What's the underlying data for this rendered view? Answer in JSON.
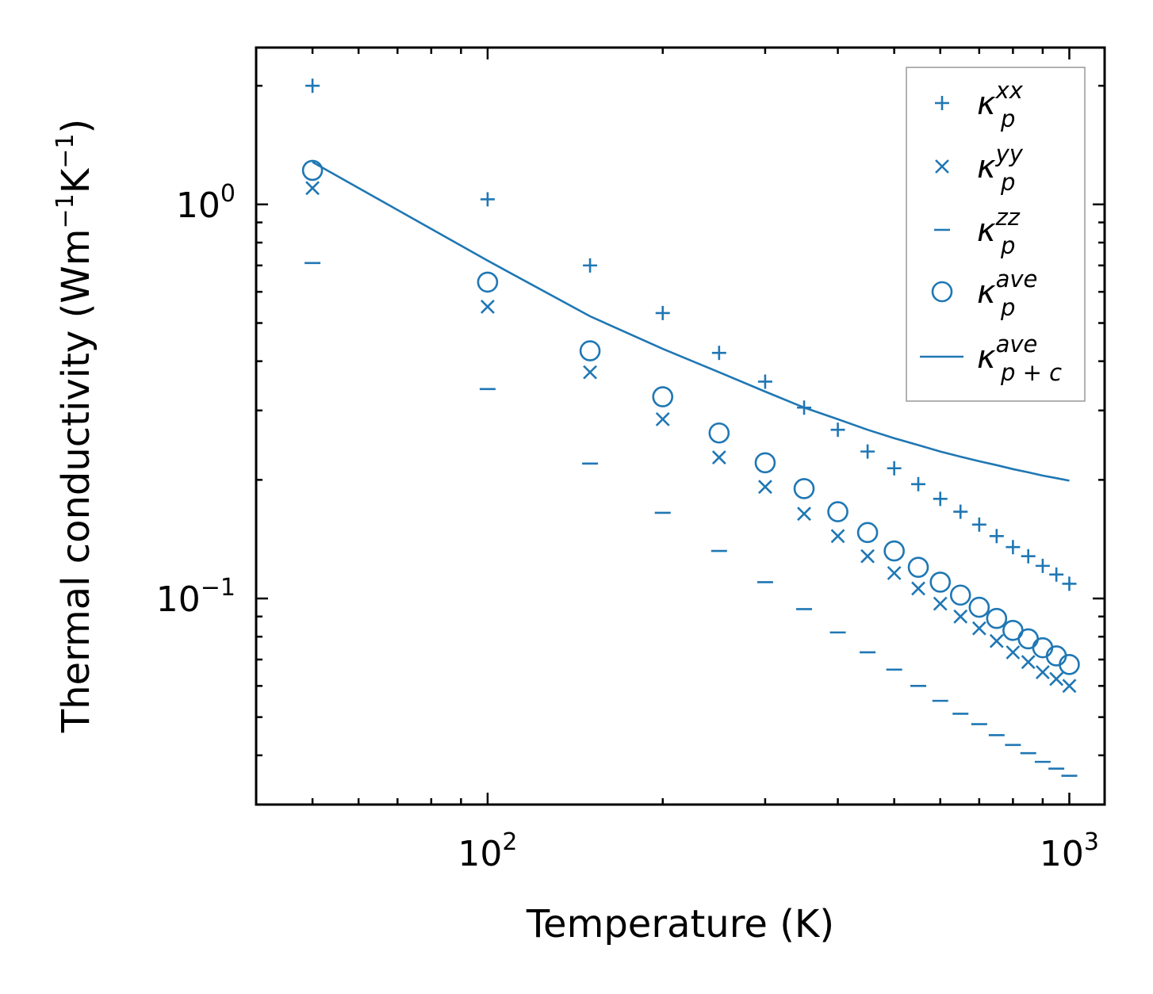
{
  "chart_data": {
    "type": "scatter",
    "xscale": "log",
    "yscale": "log",
    "xlabel": "Temperature (K)",
    "ylabel": {
      "main": "Thermal conductivity (Wm",
      "exp1": "−1",
      "mid": "K",
      "exp2": "−1",
      "close": ")"
    },
    "xlim": [
      40,
      1150
    ],
    "ylim": [
      0.03,
      2.5
    ],
    "x_major_ticks": [
      {
        "value": 100,
        "base": "10",
        "exp": "2"
      },
      {
        "value": 1000,
        "base": "10",
        "exp": "3"
      }
    ],
    "y_major_ticks": [
      {
        "value": 1,
        "base": "10",
        "exp": "0"
      },
      {
        "value": 0.1,
        "base": "10",
        "exp": "−1"
      }
    ],
    "color": "#1f77b4",
    "x": [
      50,
      100,
      150,
      200,
      250,
      300,
      350,
      400,
      450,
      500,
      550,
      600,
      650,
      700,
      750,
      800,
      850,
      900,
      950,
      1000
    ],
    "series": [
      {
        "name": "kappa_p^xx",
        "marker": "plus",
        "values": [
          2.0,
          1.03,
          0.7,
          0.53,
          0.42,
          0.355,
          0.305,
          0.268,
          0.236,
          0.214,
          0.195,
          0.179,
          0.166,
          0.154,
          0.144,
          0.135,
          0.128,
          0.121,
          0.115,
          0.109
        ]
      },
      {
        "name": "kappa_p^yy",
        "marker": "x",
        "values": [
          1.1,
          0.55,
          0.375,
          0.285,
          0.228,
          0.192,
          0.164,
          0.144,
          0.128,
          0.116,
          0.106,
          0.097,
          0.09,
          0.084,
          0.078,
          0.073,
          0.069,
          0.065,
          0.0625,
          0.06
        ]
      },
      {
        "name": "kappa_p^zz",
        "marker": "hline",
        "values": [
          0.71,
          0.34,
          0.22,
          0.165,
          0.132,
          0.11,
          0.094,
          0.082,
          0.073,
          0.066,
          0.06,
          0.055,
          0.051,
          0.048,
          0.045,
          0.0425,
          0.0405,
          0.0385,
          0.037,
          0.0355
        ]
      },
      {
        "name": "kappa_p^ave",
        "marker": "circle",
        "values": [
          1.22,
          0.635,
          0.425,
          0.325,
          0.263,
          0.221,
          0.19,
          0.166,
          0.147,
          0.132,
          0.12,
          0.11,
          0.102,
          0.095,
          0.089,
          0.083,
          0.079,
          0.075,
          0.0715,
          0.068
        ]
      },
      {
        "name": "kappa_p+c^ave",
        "marker": "line",
        "values": [
          1.28,
          0.72,
          0.52,
          0.43,
          0.375,
          0.335,
          0.305,
          0.285,
          0.268,
          0.255,
          0.245,
          0.236,
          0.229,
          0.223,
          0.218,
          0.213,
          0.209,
          0.205,
          0.202,
          0.199
        ]
      }
    ],
    "legend": {
      "position": "top-right",
      "entries": [
        {
          "base": "κ",
          "sup": "xx",
          "sub": "p",
          "marker": "plus"
        },
        {
          "base": "κ",
          "sup": "yy",
          "sub": "p",
          "marker": "x"
        },
        {
          "base": "κ",
          "sup": "zz",
          "sub": "p",
          "marker": "hline"
        },
        {
          "base": "κ",
          "sup": "ave",
          "sub": "p",
          "marker": "circle"
        },
        {
          "base": "κ",
          "sup": "ave",
          "sub": "p + c",
          "marker": "line"
        }
      ]
    }
  }
}
